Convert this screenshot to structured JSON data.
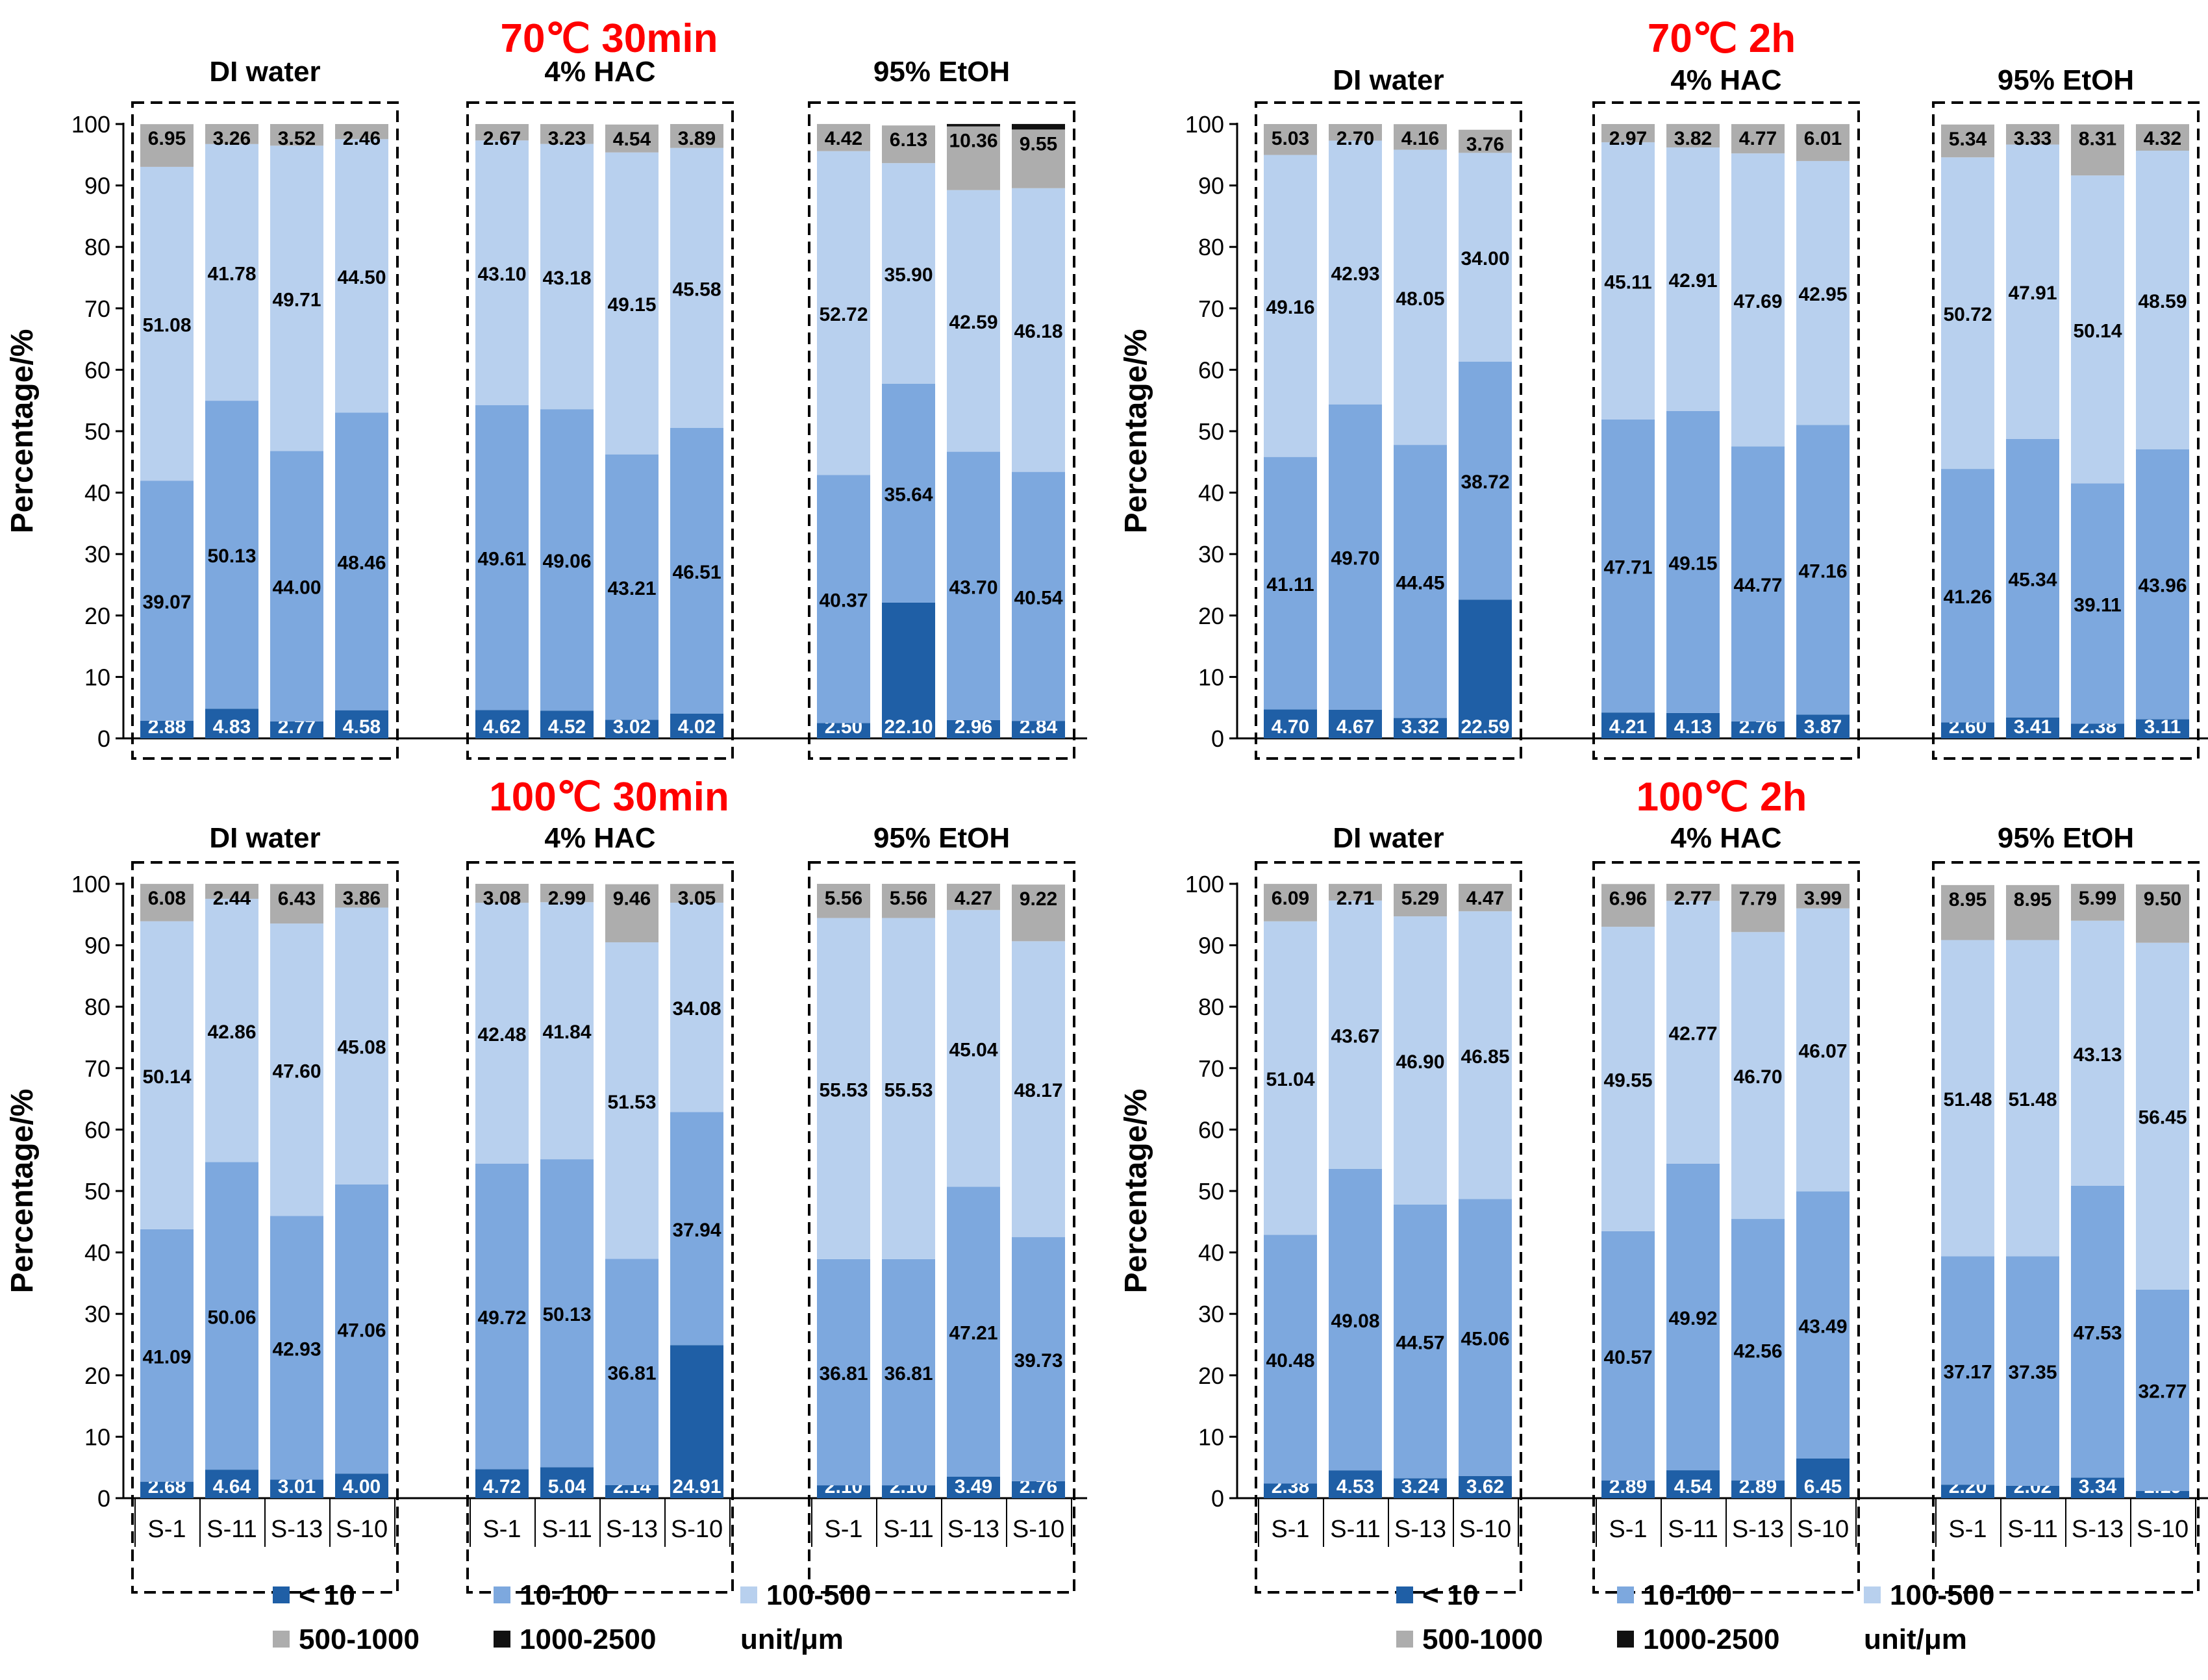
{
  "legend_items": [
    {
      "label": "< 10",
      "color": "#1F5FA6"
    },
    {
      "label": "10-100",
      "color": "#7DA8DE"
    },
    {
      "label": "100-500",
      "color": "#B8D0EE"
    },
    {
      "label": "500-1000",
      "color": "#ADADAD"
    },
    {
      "label": "1000-2500",
      "color": "#111111"
    }
  ],
  "unit_label": "unit/μm",
  "chart_data": [
    {
      "type": "bar",
      "stacked": true,
      "title": "70℃ 30min",
      "ylabel": "Percentage/%",
      "ylim": [
        0,
        100
      ],
      "yticks": [
        "0",
        "10",
        "20",
        "30",
        "40",
        "50",
        "60",
        "70",
        "80",
        "90",
        "100"
      ],
      "categories": [
        "S-1",
        "S-11",
        "S-13",
        "S-10"
      ],
      "groups": [
        {
          "name": "DI water",
          "stacks": [
            [
              2.88,
              39.07,
              51.08,
              6.95,
              0
            ],
            [
              4.83,
              50.13,
              41.78,
              3.26,
              0
            ],
            [
              2.77,
              44.0,
              49.71,
              3.52,
              0
            ],
            [
              4.58,
              48.46,
              44.5,
              2.46,
              0
            ]
          ],
          "labels": [
            [
              "2.88",
              "39.07",
              "51.08",
              "6.95",
              ""
            ],
            [
              "4.83",
              "50.13",
              "41.78",
              "3.26",
              ""
            ],
            [
              "2.77",
              "44.00",
              "49.71",
              "3.52",
              ""
            ],
            [
              "4.58",
              "48.46",
              "44.50",
              "2.46",
              ""
            ]
          ]
        },
        {
          "name": "4% HAC",
          "stacks": [
            [
              4.62,
              49.61,
              43.1,
              2.67,
              0
            ],
            [
              4.52,
              49.06,
              43.18,
              3.23,
              0
            ],
            [
              3.02,
              43.21,
              49.15,
              4.54,
              0
            ],
            [
              4.02,
              46.51,
              45.58,
              3.89,
              0
            ]
          ],
          "labels": [
            [
              "4.62",
              "49.61",
              "43.10",
              "2.67",
              ""
            ],
            [
              "4.52",
              "49.06",
              "43.18",
              "3.23",
              ""
            ],
            [
              "3.02",
              "43.21",
              "49.15",
              "4.54",
              ""
            ],
            [
              "4.02",
              "46.51",
              "45.58",
              "3.89",
              ""
            ]
          ]
        },
        {
          "name": "95% EtOH",
          "stacks": [
            [
              2.5,
              40.37,
              52.72,
              4.42,
              0
            ],
            [
              22.1,
              35.64,
              35.9,
              6.13,
              0
            ],
            [
              2.96,
              43.7,
              42.59,
              10.36,
              0.4
            ],
            [
              2.84,
              40.54,
              46.18,
              9.55,
              0.9
            ]
          ],
          "labels": [
            [
              "2.50",
              "40.37",
              "52.72",
              "4.42",
              ""
            ],
            [
              "22.10",
              "35.64",
              "35.90",
              "6.13",
              ""
            ],
            [
              "2.96",
              "43.70",
              "42.59",
              "10.36",
              ""
            ],
            [
              "2.84",
              "40.54",
              "46.18",
              "9.55",
              ""
            ]
          ]
        }
      ]
    },
    {
      "type": "bar",
      "stacked": true,
      "title": "70℃ 2h",
      "ylabel": "Percentage/%",
      "ylim": [
        0,
        100
      ],
      "yticks": [
        "0",
        "10",
        "20",
        "30",
        "40",
        "50",
        "60",
        "70",
        "80",
        "90",
        "100"
      ],
      "categories": [
        "S-1",
        "S-11",
        "S-13",
        "S-10"
      ],
      "groups": [
        {
          "name": "DI water",
          "stacks": [
            [
              4.7,
              41.11,
              49.16,
              5.03,
              0
            ],
            [
              4.67,
              49.7,
              42.93,
              2.7,
              0
            ],
            [
              3.32,
              44.45,
              48.05,
              4.16,
              0
            ],
            [
              22.59,
              38.72,
              34.0,
              3.76,
              0
            ]
          ],
          "labels": [
            [
              "4.70",
              "41.11",
              "49.16",
              "5.03",
              ""
            ],
            [
              "4.67",
              "49.70",
              "42.93",
              "2.70",
              ""
            ],
            [
              "3.32",
              "44.45",
              "48.05",
              "4.16",
              ""
            ],
            [
              "22.59",
              "38.72",
              "34.00",
              "3.76",
              ""
            ]
          ]
        },
        {
          "name": "4% HAC",
          "stacks": [
            [
              4.21,
              47.71,
              45.11,
              2.97,
              0
            ],
            [
              4.13,
              49.15,
              42.91,
              3.82,
              0
            ],
            [
              2.76,
              44.77,
              47.69,
              4.77,
              0
            ],
            [
              3.87,
              47.16,
              42.95,
              6.01,
              0
            ]
          ],
          "labels": [
            [
              "4.21",
              "47.71",
              "45.11",
              "2.97",
              ""
            ],
            [
              "4.13",
              "49.15",
              "42.91",
              "3.82",
              ""
            ],
            [
              "2.76",
              "44.77",
              "47.69",
              "4.77",
              ""
            ],
            [
              "3.87",
              "47.16",
              "42.95",
              "6.01",
              ""
            ]
          ]
        },
        {
          "name": "95% EtOH",
          "stacks": [
            [
              2.6,
              41.26,
              50.72,
              5.34,
              0
            ],
            [
              3.41,
              45.34,
              47.91,
              3.33,
              0
            ],
            [
              2.38,
              39.11,
              50.14,
              8.31,
              0
            ],
            [
              3.11,
              43.96,
              48.59,
              4.32,
              0
            ]
          ],
          "labels": [
            [
              "2.60",
              "41.26",
              "50.72",
              "5.34",
              ""
            ],
            [
              "3.41",
              "45.34",
              "47.91",
              "3.33",
              ""
            ],
            [
              "2.38",
              "39.11",
              "50.14",
              "8.31",
              ""
            ],
            [
              "3.11",
              "43.96",
              "48.59",
              "4.32",
              ""
            ]
          ]
        }
      ]
    },
    {
      "type": "bar",
      "stacked": true,
      "title": "100℃ 30min",
      "ylabel": "Percentage/%",
      "ylim": [
        0,
        100
      ],
      "yticks": [
        "0",
        "10",
        "20",
        "30",
        "40",
        "50",
        "60",
        "70",
        "80",
        "90",
        "100"
      ],
      "categories": [
        "S-1",
        "S-11",
        "S-13",
        "S-10"
      ],
      "groups": [
        {
          "name": "DI water",
          "stacks": [
            [
              2.68,
              41.09,
              50.14,
              6.08,
              0
            ],
            [
              4.64,
              50.06,
              42.86,
              2.44,
              0
            ],
            [
              3.01,
              42.93,
              47.6,
              6.43,
              0
            ],
            [
              4.0,
              47.06,
              45.08,
              3.86,
              0
            ]
          ],
          "labels": [
            [
              "2.68",
              "41.09",
              "50.14",
              "6.08",
              ""
            ],
            [
              "4.64",
              "50.06",
              "42.86",
              "2.44",
              ""
            ],
            [
              "3.01",
              "42.93",
              "47.60",
              "6.43",
              ""
            ],
            [
              "4.00",
              "47.06",
              "45.08",
              "3.86",
              ""
            ]
          ]
        },
        {
          "name": "4% HAC",
          "stacks": [
            [
              4.72,
              49.72,
              42.48,
              3.08,
              0
            ],
            [
              5.04,
              50.13,
              41.84,
              2.99,
              0
            ],
            [
              2.14,
              36.81,
              51.53,
              9.46,
              0
            ],
            [
              24.91,
              37.94,
              34.08,
              3.05,
              0
            ]
          ],
          "labels": [
            [
              "4.72",
              "49.72",
              "42.48",
              "3.08",
              ""
            ],
            [
              "5.04",
              "50.13",
              "41.84",
              "2.99",
              ""
            ],
            [
              "2.14",
              "36.81",
              "51.53",
              "9.46",
              ""
            ],
            [
              "24.91",
              "37.94",
              "34.08",
              "3.05",
              ""
            ]
          ]
        },
        {
          "name": "95% EtOH",
          "stacks": [
            [
              2.1,
              36.81,
              55.53,
              5.56,
              0
            ],
            [
              2.1,
              36.81,
              55.53,
              5.56,
              0
            ],
            [
              3.49,
              47.21,
              45.04,
              4.27,
              0
            ],
            [
              2.76,
              39.73,
              48.17,
              9.22,
              0
            ]
          ],
          "labels": [
            [
              "2.10",
              "36.81",
              "55.53",
              "5.56",
              ""
            ],
            [
              "2.10",
              "36.81",
              "55.53",
              "5.56",
              ""
            ],
            [
              "3.49",
              "47.21",
              "45.04",
              "4.27",
              ""
            ],
            [
              "2.76",
              "39.73",
              "48.17",
              "9.22",
              ""
            ]
          ]
        }
      ]
    },
    {
      "type": "bar",
      "stacked": true,
      "title": "100℃ 2h",
      "ylabel": "Percentage/%",
      "ylim": [
        0,
        100
      ],
      "yticks": [
        "0",
        "10",
        "20",
        "30",
        "40",
        "50",
        "60",
        "70",
        "80",
        "90",
        "100"
      ],
      "categories": [
        "S-1",
        "S-11",
        "S-13",
        "S-10"
      ],
      "groups": [
        {
          "name": "DI water",
          "stacks": [
            [
              2.38,
              40.48,
              51.04,
              6.09,
              0
            ],
            [
              4.53,
              49.08,
              43.67,
              2.71,
              0
            ],
            [
              3.24,
              44.57,
              46.9,
              5.29,
              0
            ],
            [
              3.62,
              45.06,
              46.85,
              4.47,
              0
            ]
          ],
          "labels": [
            [
              "2.38",
              "40.48",
              "51.04",
              "6.09",
              ""
            ],
            [
              "4.53",
              "49.08",
              "43.67",
              "2.71",
              ""
            ],
            [
              "3.24",
              "44.57",
              "46.90",
              "5.29",
              ""
            ],
            [
              "3.62",
              "45.06",
              "46.85",
              "4.47",
              ""
            ]
          ]
        },
        {
          "name": "4% HAC",
          "stacks": [
            [
              2.89,
              40.57,
              49.55,
              6.96,
              0
            ],
            [
              4.54,
              49.92,
              42.77,
              2.77,
              0
            ],
            [
              2.89,
              42.56,
              46.7,
              7.79,
              0
            ],
            [
              6.45,
              43.49,
              46.07,
              3.99,
              0
            ]
          ],
          "labels": [
            [
              "2.89",
              "40.57",
              "49.55",
              "6.96",
              ""
            ],
            [
              "4.54",
              "49.92",
              "42.77",
              "2.77",
              ""
            ],
            [
              "2.89",
              "42.56",
              "46.70",
              "7.79",
              ""
            ],
            [
              "6.45",
              "43.49",
              "46.07",
              "3.99",
              ""
            ]
          ]
        },
        {
          "name": "95% EtOH",
          "stacks": [
            [
              2.2,
              37.17,
              51.48,
              8.95,
              0
            ],
            [
              2.02,
              37.35,
              51.48,
              8.95,
              0
            ],
            [
              3.34,
              47.53,
              43.13,
              5.99,
              0
            ],
            [
              1.19,
              32.77,
              56.45,
              9.5,
              0
            ]
          ],
          "labels": [
            [
              "2.20",
              "37.17",
              "51.48",
              "8.95",
              ""
            ],
            [
              "2.02",
              "37.35",
              "51.48",
              "8.95",
              ""
            ],
            [
              "3.34",
              "47.53",
              "43.13",
              "5.99",
              ""
            ],
            [
              "1.19",
              "32.77",
              "56.45",
              "9.50",
              ""
            ]
          ]
        }
      ]
    }
  ]
}
